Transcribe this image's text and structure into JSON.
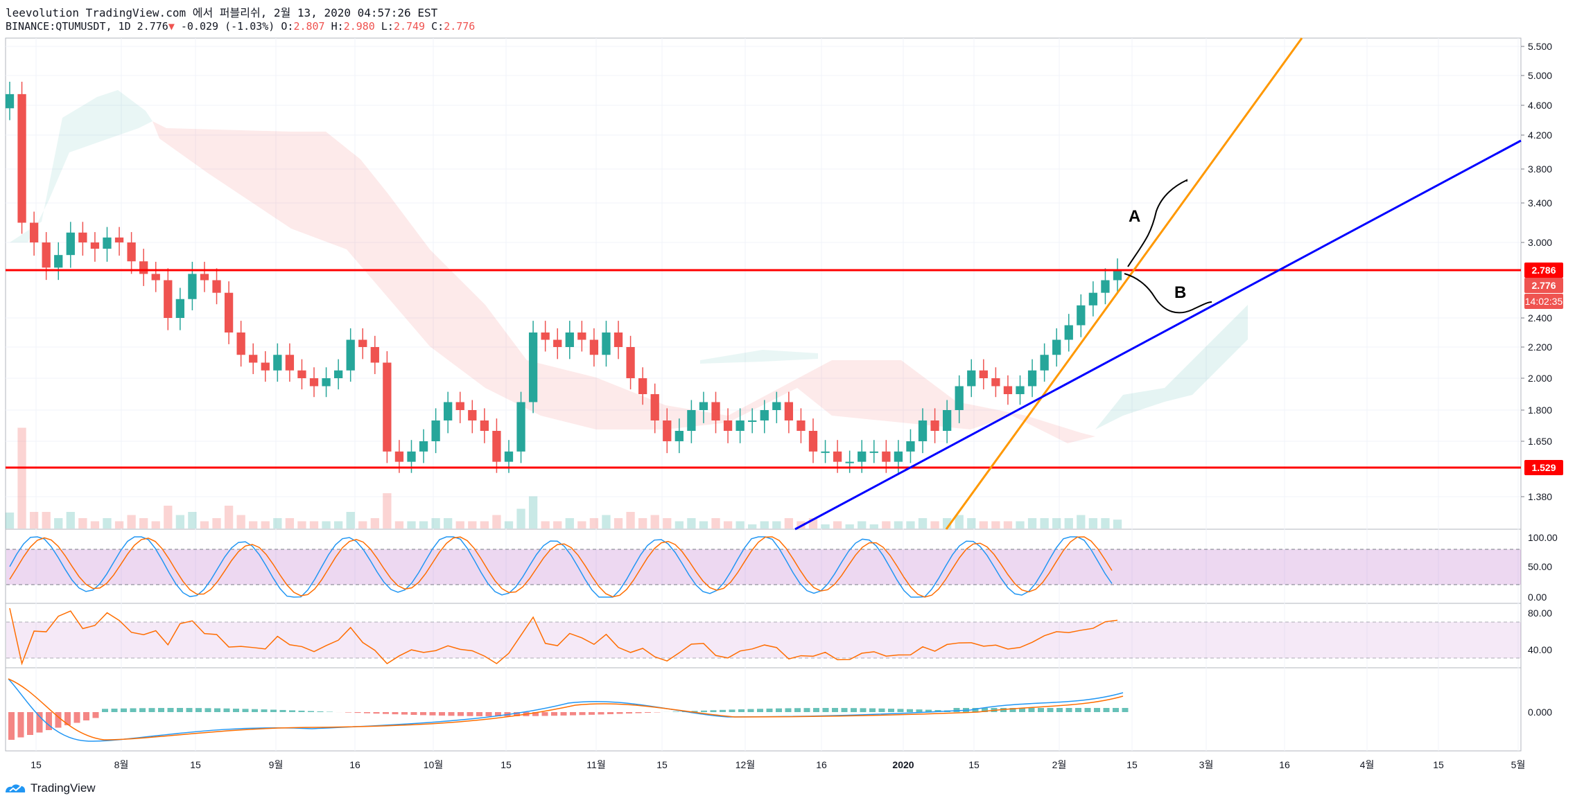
{
  "header": {
    "line1": "leevolution TradingView.com 에서 퍼블리쉬, 2월 13, 2020 04:57:26 EST",
    "symbol": "BINANCE:QTUMUSDT, 1D",
    "last": "2.776",
    "change_arrow": "▼",
    "change": "-0.029 (-1.03%)",
    "o_label": "O:",
    "o": "2.807",
    "h_label": "H:",
    "h": "2.980",
    "l_label": "L:",
    "l": "2.749",
    "c_label": "C:",
    "c": "2.776"
  },
  "footer": {
    "brand": "TradingView"
  },
  "price_tags": {
    "resistance": "2.786",
    "last": "2.776",
    "countdown": "14:02:35",
    "support": "1.529"
  },
  "annotations": {
    "a": "A",
    "b": "B"
  },
  "colors": {
    "up": "#26a69a",
    "down": "#ef5350",
    "hline": "#ff0000",
    "trend_orange": "#ff9800",
    "trend_blue": "#0000ff",
    "stoch_k": "#2196f3",
    "stoch_d": "#ff6d00"
  },
  "chart_data": {
    "type": "candlestick",
    "symbol": "BINANCE:QTUMUSDT",
    "interval": "1D",
    "price_axis_ticks": [
      "5.500",
      "5.000",
      "4.600",
      "4.200",
      "3.800",
      "3.400",
      "3.000",
      "2.400",
      "2.200",
      "2.000",
      "1.800",
      "1.650",
      "1.380"
    ],
    "time_axis_ticks": [
      "15",
      "8월",
      "15",
      "9월",
      "16",
      "10월",
      "15",
      "11월",
      "15",
      "12월",
      "16",
      "2020",
      "15",
      "2월",
      "15",
      "3월",
      "16",
      "4월",
      "15",
      "5월"
    ],
    "close_series": [
      4.75,
      3.2,
      3.0,
      2.8,
      2.9,
      3.1,
      3.0,
      2.95,
      3.05,
      3.0,
      2.85,
      2.75,
      2.7,
      2.4,
      2.55,
      2.75,
      2.7,
      2.6,
      2.3,
      2.15,
      2.1,
      2.05,
      2.15,
      2.05,
      2.0,
      1.95,
      2.0,
      2.05,
      2.25,
      2.2,
      2.1,
      1.6,
      1.55,
      1.6,
      1.65,
      1.75,
      1.85,
      1.8,
      1.75,
      1.7,
      1.55,
      1.6,
      1.85,
      2.3,
      2.25,
      2.2,
      2.3,
      2.25,
      2.15,
      2.3,
      2.2,
      2.0,
      1.9,
      1.75,
      1.65,
      1.7,
      1.8,
      1.85,
      1.75,
      1.7,
      1.75,
      1.75,
      1.8,
      1.85,
      1.75,
      1.7,
      1.6,
      1.6,
      1.55,
      1.55,
      1.6,
      1.6,
      1.55,
      1.6,
      1.65,
      1.75,
      1.7,
      1.8,
      1.95,
      2.05,
      2.0,
      1.95,
      1.9,
      1.95,
      2.05,
      2.15,
      2.25,
      2.35,
      2.5,
      2.6,
      2.7,
      2.776
    ],
    "horizontal_lines": [
      2.786,
      1.529
    ],
    "last_price": 2.776,
    "countdown": "14:02:35",
    "ichimoku_cloud": true,
    "indicators": [
      {
        "name": "stochastic",
        "ticks": [
          "100.00",
          "50.00",
          "0.00"
        ],
        "band": [
          20,
          80
        ]
      },
      {
        "name": "rsi",
        "ticks": [
          "80.00",
          "40.00"
        ],
        "band": [
          30,
          70
        ]
      },
      {
        "name": "macd",
        "ticks": [
          "0.000"
        ]
      }
    ],
    "drawings": [
      "orange trendline",
      "blue trendline",
      "scenario A up",
      "scenario B pullback"
    ]
  }
}
